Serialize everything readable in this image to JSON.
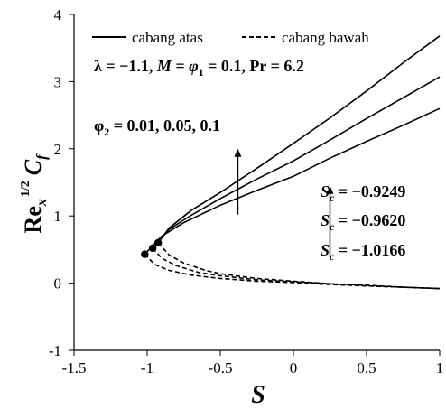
{
  "chart_data": {
    "type": "line",
    "xlabel": "S",
    "ylabel": {
      "base": "Re",
      "sub": "x",
      "sup": "1/2",
      "main": "C",
      "main_sub": "f"
    },
    "xlim": [
      -1.5,
      1
    ],
    "ylim": [
      -1,
      4
    ],
    "x_ticks": [
      "-1.5",
      "-1",
      "-0.5",
      "0",
      "0.5",
      "1"
    ],
    "y_ticks": [
      "-1",
      "0",
      "1",
      "2",
      "3",
      "4"
    ],
    "grid": false,
    "legend": {
      "placement": "top",
      "entries": [
        {
          "label": "cabang atas",
          "style": "solid"
        },
        {
          "label": "cabang bawah",
          "style": "dashed"
        }
      ]
    },
    "params_annotation": {
      "lambda": "λ = −1.1, ",
      "M_phi1": "M = φ",
      "sub1": "1",
      "rest": " = 0.1, Pr = 6.2"
    },
    "phi2_annotation": {
      "prefix": "φ",
      "sub": "2",
      "values": " = 0.01, 0.05, 0.1"
    },
    "sc_annotations": [
      {
        "s": "S",
        "sub": "c",
        "value": " = −0.9249"
      },
      {
        "s": "S",
        "sub": "c",
        "value": " = −0.9620"
      },
      {
        "s": "S",
        "sub": "c",
        "value": " = −1.0166"
      }
    ],
    "series": [
      {
        "branch": "upper",
        "style": "solid",
        "x": [
          -1.0166,
          -0.9,
          -0.75,
          -0.5,
          -0.25,
          0,
          0.25,
          0.5,
          0.75,
          1
        ],
        "y": [
          0.43,
          0.7,
          0.9,
          1.16,
          1.38,
          1.59,
          1.86,
          2.11,
          2.35,
          2.6
        ]
      },
      {
        "branch": "upper",
        "style": "solid",
        "x": [
          -0.962,
          -0.85,
          -0.7,
          -0.5,
          -0.25,
          0,
          0.25,
          0.5,
          0.75,
          1
        ],
        "y": [
          0.52,
          0.8,
          1.01,
          1.26,
          1.55,
          1.82,
          2.13,
          2.45,
          2.76,
          3.07
        ]
      },
      {
        "branch": "upper",
        "style": "solid",
        "x": [
          -0.9249,
          -0.85,
          -0.7,
          -0.5,
          -0.25,
          0,
          0.25,
          0.5,
          0.75,
          1
        ],
        "y": [
          0.6,
          0.82,
          1.08,
          1.35,
          1.71,
          2.08,
          2.46,
          2.86,
          3.28,
          3.68
        ]
      },
      {
        "branch": "lower",
        "style": "dashed",
        "x": [
          -1.0166,
          -0.95,
          -0.85,
          -0.7,
          -0.5,
          -0.25,
          0,
          0.25,
          0.5,
          0.75,
          1
        ],
        "y": [
          0.43,
          0.28,
          0.19,
          0.12,
          0.07,
          0.03,
          0.01,
          -0.02,
          -0.04,
          -0.06,
          -0.08
        ]
      },
      {
        "branch": "lower",
        "style": "dashed",
        "x": [
          -0.962,
          -0.9,
          -0.8,
          -0.65,
          -0.5,
          -0.25,
          0,
          0.25,
          0.5,
          0.75,
          1
        ],
        "y": [
          0.52,
          0.37,
          0.26,
          0.16,
          0.11,
          0.05,
          0.02,
          -0.01,
          -0.04,
          -0.06,
          -0.08
        ]
      },
      {
        "branch": "lower",
        "style": "dashed",
        "x": [
          -0.9249,
          -0.85,
          -0.75,
          -0.6,
          -0.5,
          -0.25,
          0,
          0.25,
          0.5,
          0.75,
          1
        ],
        "y": [
          0.6,
          0.42,
          0.3,
          0.19,
          0.14,
          0.07,
          0.03,
          -0.01,
          -0.03,
          -0.06,
          -0.08
        ]
      }
    ],
    "critical_points": [
      {
        "x": -1.0166,
        "y": 0.43
      },
      {
        "x": -0.962,
        "y": 0.52
      },
      {
        "x": -0.9249,
        "y": 0.6
      }
    ],
    "arrows": [
      {
        "x": -0.38,
        "y_from": 1.02,
        "y_to": 2.0
      },
      {
        "x": 0.25,
        "y_from": 0.38,
        "y_to": 1.45
      }
    ]
  }
}
